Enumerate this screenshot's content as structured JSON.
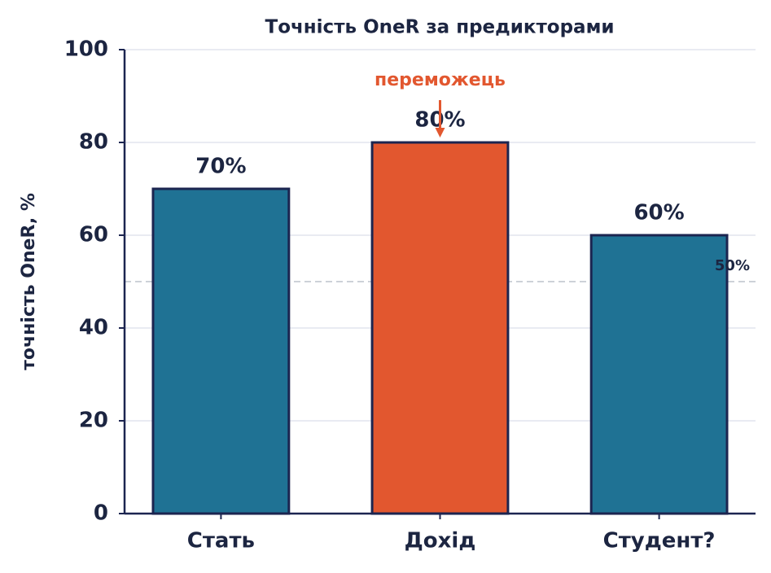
{
  "chart_data": {
    "type": "bar",
    "title": "Точність OneR за предикторами",
    "y_label": "точність OneR, %",
    "categories": [
      "Стать",
      "Дохід",
      "Студент?"
    ],
    "values": [
      70,
      80,
      60
    ],
    "value_labels": [
      "70%",
      "80%",
      "60%"
    ],
    "colors": [
      "#1f7294",
      "#e2572f",
      "#1f7294"
    ],
    "ylim": [
      0,
      100
    ],
    "yticks": [
      0,
      20,
      40,
      60,
      80,
      100
    ],
    "grid": true,
    "reference_line": {
      "value": 50,
      "label": "50%"
    },
    "annotation": "переможець"
  }
}
